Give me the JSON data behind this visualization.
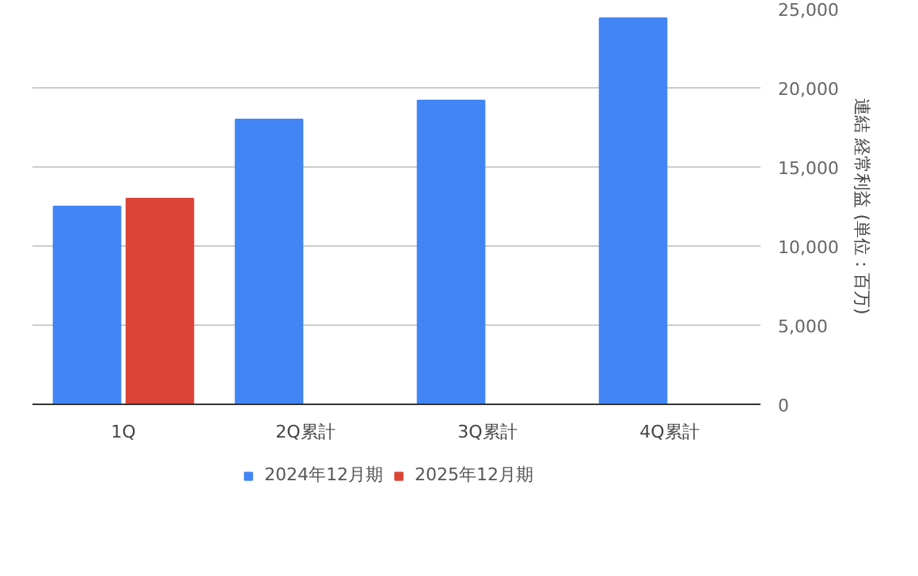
{
  "chart_data": {
    "type": "bar",
    "categories": [
      "1Q",
      "2Q累計",
      "3Q累計",
      "4Q累計"
    ],
    "series": [
      {
        "name": "2024年12月期",
        "color": "#4285f4",
        "values": [
          12500,
          18000,
          19200,
          24400
        ]
      },
      {
        "name": "2025年12月期",
        "color": "#db4437",
        "values": [
          13000,
          null,
          null,
          null
        ]
      }
    ],
    "ylabel": "連結 経常利益 (単位：百万)",
    "ylim": [
      0,
      25000
    ],
    "yticks": [
      {
        "value": 0,
        "label": "0"
      },
      {
        "value": 5000,
        "label": "5,000"
      },
      {
        "value": 10000,
        "label": "10,000"
      },
      {
        "value": 15000,
        "label": "15,000"
      },
      {
        "value": 20000,
        "label": "20,000"
      },
      {
        "value": 25000,
        "label": "25,000"
      }
    ],
    "grid": "y",
    "legend": "bottom"
  }
}
